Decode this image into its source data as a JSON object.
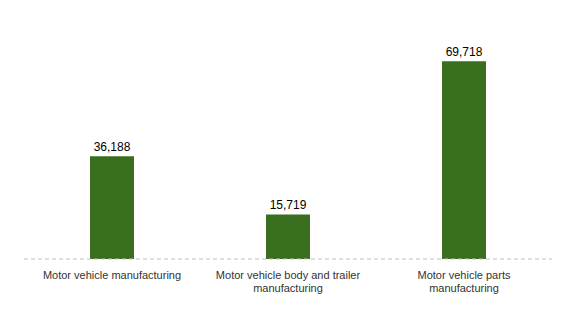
{
  "chart_data": {
    "type": "bar",
    "categories": [
      "Motor vehicle manufacturing",
      "Motor vehicle body and trailer\nmanufacturing",
      "Motor vehicle parts\nmanufacturing"
    ],
    "values": [
      36188,
      15719,
      69718
    ],
    "value_labels": [
      "36,188",
      "15,719",
      "69,718"
    ],
    "color": "#3a6e1f",
    "ylim": [
      0,
      80000
    ],
    "data_labels": true,
    "tick_labels": "x",
    "grid": false
  }
}
